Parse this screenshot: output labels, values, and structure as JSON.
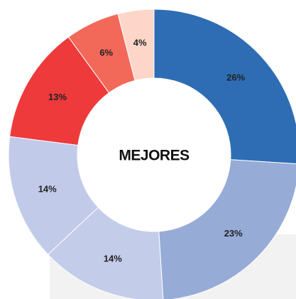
{
  "chart_data": {
    "type": "donut",
    "title": "MEJORES",
    "values": [
      26,
      23,
      14,
      14,
      13,
      6,
      4
    ],
    "value_labels": [
      "26%",
      "23%",
      "14%",
      "14%",
      "13%",
      "6%",
      "4%"
    ],
    "colors": [
      "#2e6db4",
      "#97abd7",
      "#c3cdea",
      "#c1cbe9",
      "#ee3a3b",
      "#f2695a",
      "#fdd6c9"
    ]
  }
}
